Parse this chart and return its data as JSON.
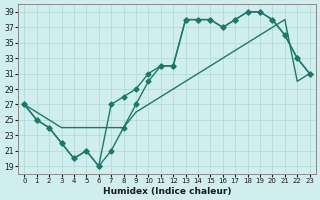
{
  "xlabel": "Humidex (Indice chaleur)",
  "ylabel": "",
  "xlim": [
    -0.5,
    23.5
  ],
  "ylim": [
    18,
    40
  ],
  "yticks": [
    19,
    21,
    23,
    25,
    27,
    29,
    31,
    33,
    35,
    37,
    39
  ],
  "xticks": [
    0,
    1,
    2,
    3,
    4,
    5,
    6,
    7,
    8,
    9,
    10,
    11,
    12,
    13,
    14,
    15,
    16,
    17,
    18,
    19,
    20,
    21,
    22,
    23
  ],
  "bg_color": "#d0eeee",
  "grid_color": "#b0d8d8",
  "line_color": "#1a7a6a",
  "line1_x": [
    0,
    1,
    2,
    3,
    4,
    5,
    6,
    7,
    8,
    9,
    10,
    11,
    12,
    13,
    14,
    15,
    16,
    17,
    18,
    19,
    20,
    21,
    22,
    23
  ],
  "line1_y": [
    27,
    25,
    24,
    22,
    20,
    21,
    19,
    21,
    24,
    27,
    30,
    32,
    32,
    38,
    38,
    38,
    37,
    38,
    39,
    39,
    38,
    36,
    33,
    31
  ],
  "line2_x": [
    0,
    1,
    2,
    3,
    4,
    5,
    6,
    7,
    8,
    9,
    10,
    11,
    12,
    13,
    14,
    15,
    16,
    17,
    18,
    19,
    20,
    21,
    22,
    23
  ],
  "line2_y": [
    27,
    25,
    24,
    22,
    20,
    21,
    19,
    27,
    28,
    29,
    31,
    32,
    32,
    38,
    38,
    38,
    37,
    38,
    39,
    39,
    38,
    36,
    33,
    31
  ],
  "line3_x": [
    0,
    2,
    3,
    8,
    9,
    10,
    11,
    12,
    13,
    14,
    15,
    16,
    17,
    18,
    19,
    20,
    21,
    22,
    23
  ],
  "line3_y": [
    27,
    25,
    24,
    24,
    26,
    27,
    28,
    29,
    30,
    31,
    32,
    33,
    34,
    35,
    36,
    37,
    38,
    30,
    31
  ]
}
